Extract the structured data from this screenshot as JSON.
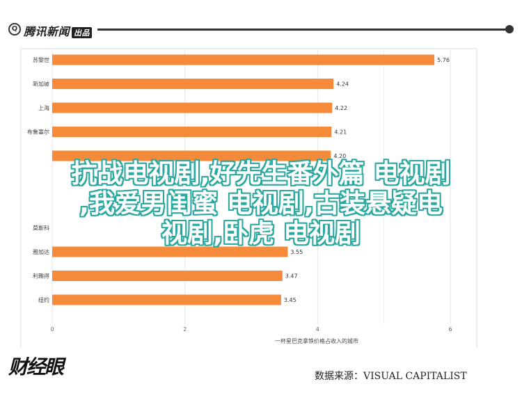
{
  "header": {
    "logo_icon": "Q",
    "logo_text": "腾讯新闻",
    "logo_badge": "出品"
  },
  "chart_data": {
    "type": "bar",
    "orientation": "horizontal",
    "categories": [
      "苏黎世",
      "新加坡",
      "上海",
      "布鲁塞尔",
      "",
      "",
      "",
      "莫斯科",
      "雅加达",
      "利雅得",
      "纽约"
    ],
    "values": [
      5.76,
      4.24,
      4.22,
      4.21,
      4.2,
      null,
      null,
      null,
      3.55,
      3.47,
      3.45
    ],
    "value_labels": [
      "5.76",
      "4.24",
      "4.22",
      "4.21",
      "4.20",
      "",
      "",
      "",
      "3.55",
      "3.47",
      "3.45"
    ],
    "xlim": [
      0,
      6.3
    ],
    "xticks": [
      "0",
      "2",
      "4",
      "6"
    ],
    "xlabel": "一杯星巴克拿铁价格占收入的城市",
    "bar_color": "#f58a3a",
    "grid": true
  },
  "overlay": {
    "lines": [
      "抗战电视剧,好先生番外篇 电视剧",
      ",我爱男闺蜜 电视剧,古装悬疑电",
      "视剧,卧虎 电视剧"
    ]
  },
  "footer": {
    "logo_text": "财经眼",
    "source": "数据来源：VISUAL CAPITALIST"
  }
}
